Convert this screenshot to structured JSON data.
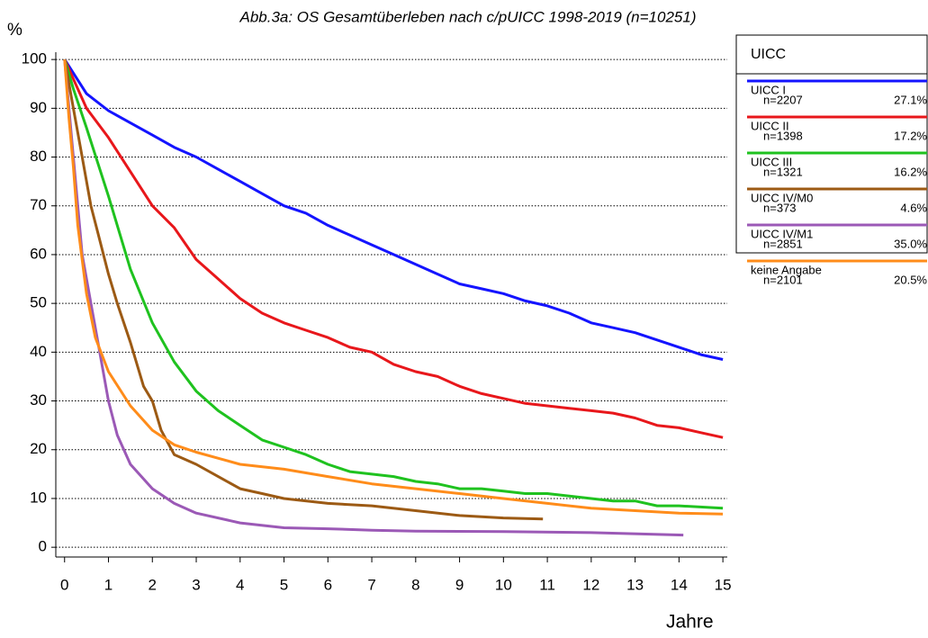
{
  "chart_data": {
    "type": "line",
    "title": "Abb.3a: OS Gesamtüberleben nach c/pUICC 1998-2019 (n=10251)",
    "y_label": "%",
    "x_label": "Jahre",
    "legend_title": "UICC",
    "legend": "right",
    "grid": true,
    "xlim": [
      -0.2,
      15.1
    ],
    "ylim": [
      -2,
      101.5
    ],
    "xticks": [
      0,
      1,
      2,
      3,
      4,
      5,
      6,
      7,
      8,
      9,
      10,
      11,
      12,
      13,
      14,
      15
    ],
    "yticks": [
      0,
      10,
      20,
      30,
      40,
      50,
      60,
      70,
      80,
      90,
      100
    ],
    "series": [
      {
        "name": "UICC I",
        "n": "n=2207",
        "share": "27.1%",
        "color": "#1414ff",
        "x": [
          0,
          0.5,
          1,
          1.5,
          2,
          2.5,
          3,
          3.5,
          4,
          4.5,
          5,
          5.5,
          6,
          6.5,
          7,
          7.5,
          8,
          8.5,
          9,
          9.5,
          10,
          10.5,
          11,
          11.5,
          12,
          12.5,
          13,
          13.5,
          14,
          14.5,
          15
        ],
        "values": [
          100,
          93,
          89.5,
          87,
          84.5,
          82,
          80,
          77.5,
          75,
          72.5,
          70,
          68.5,
          66,
          64,
          62,
          60,
          58,
          56,
          54,
          53,
          52,
          50.5,
          49.5,
          48,
          46,
          45,
          44,
          42.5,
          41,
          39.5,
          38.5
        ]
      },
      {
        "name": "UICC II",
        "n": "n=1398",
        "share": "17.2%",
        "color": "#e8171b",
        "x": [
          0,
          0.2,
          0.5,
          1,
          1.5,
          2,
          2.5,
          3,
          3.5,
          4,
          4.5,
          5,
          5.5,
          6,
          6.5,
          7,
          7.5,
          8,
          8.5,
          9,
          9.5,
          10,
          10.5,
          11,
          11.5,
          12,
          12.5,
          13,
          13.5,
          14,
          14.5,
          15
        ],
        "values": [
          100,
          96,
          90,
          84,
          77,
          70,
          65.5,
          59,
          55,
          51,
          48,
          46,
          44.5,
          43,
          41,
          40,
          37.5,
          36,
          35,
          33,
          31.5,
          30.5,
          29.5,
          29,
          28.5,
          28,
          27.5,
          26.5,
          25,
          24.5,
          23.5,
          22.5
        ]
      },
      {
        "name": "UICC III",
        "n": "n=1321",
        "share": "16.2%",
        "color": "#1fc21f",
        "x": [
          0,
          0.2,
          0.5,
          1,
          1.5,
          2,
          2.5,
          3,
          3.5,
          4,
          4.5,
          5,
          5.5,
          6,
          6.5,
          7,
          7.5,
          8,
          8.5,
          9,
          9.5,
          10,
          10.5,
          11,
          11.5,
          12,
          12.5,
          13,
          13.5,
          14,
          15
        ],
        "values": [
          100,
          94,
          86,
          72,
          57,
          46,
          38,
          32,
          28,
          25,
          22,
          20.5,
          19,
          17,
          15.5,
          15,
          14.5,
          13.5,
          13,
          12,
          12,
          11.5,
          11,
          11,
          10.5,
          10,
          9.5,
          9.5,
          8.5,
          8.5,
          8
        ]
      },
      {
        "name": "UICC IV/M0",
        "n": "n=373",
        "share": "4.6%",
        "color": "#9c5a14",
        "x": [
          0,
          0.2,
          0.4,
          0.6,
          0.8,
          1,
          1.2,
          1.5,
          1.8,
          2,
          2.2,
          2.5,
          3,
          3.5,
          4,
          4.5,
          5,
          6,
          7,
          8,
          9,
          10,
          10.9
        ],
        "values": [
          100,
          90,
          80,
          70,
          63,
          56,
          50,
          42,
          33,
          30,
          24,
          19,
          17,
          14.5,
          12,
          11,
          10,
          9,
          8.5,
          7.5,
          6.5,
          6,
          5.8
        ]
      },
      {
        "name": "UICC IV/M1",
        "n": "n=2851",
        "share": "35.0%",
        "color": "#9b59b6",
        "x": [
          0,
          0.1,
          0.2,
          0.3,
          0.4,
          0.6,
          0.8,
          1,
          1.2,
          1.5,
          2,
          2.5,
          3,
          4,
          5,
          6,
          7,
          8,
          10,
          12,
          14.1
        ],
        "values": [
          100,
          90,
          80,
          70,
          60,
          50,
          40,
          30,
          23,
          17,
          12,
          9,
          7,
          5,
          4,
          3.8,
          3.5,
          3.3,
          3.2,
          3,
          2.5
        ]
      },
      {
        "name": "keine Angabe",
        "n": "n=2101",
        "share": "20.5%",
        "color": "#ff8c1a",
        "x": [
          0,
          0.1,
          0.2,
          0.3,
          0.5,
          0.7,
          1,
          1.5,
          2,
          2.5,
          3,
          4,
          5,
          6,
          7,
          8,
          9,
          10,
          11,
          12,
          13,
          14,
          15
        ],
        "values": [
          100,
          88,
          78,
          66,
          52,
          43,
          36,
          29,
          24,
          21,
          19.5,
          17,
          16,
          14.5,
          13,
          12,
          11,
          10,
          9,
          8,
          7.5,
          7,
          6.8
        ]
      }
    ]
  }
}
